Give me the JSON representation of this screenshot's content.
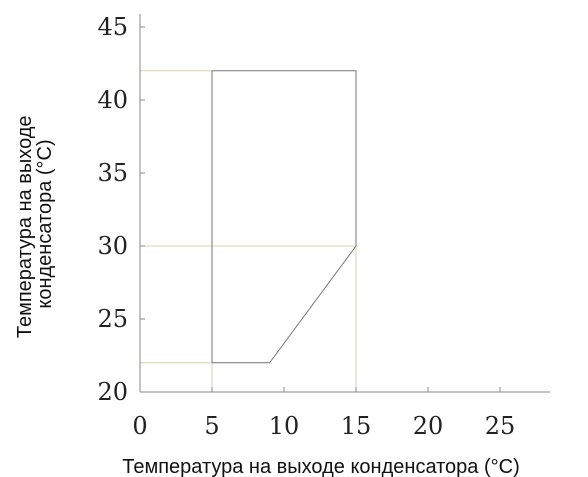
{
  "chart_data": {
    "type": "line",
    "xlabel": "Температура на выходе конденсатора (°C)",
    "ylabel_line1": "Температура на выходе",
    "ylabel_line2": "конденсатора (°C)",
    "xlim": [
      0,
      27.5
    ],
    "ylim": [
      20,
      46
    ],
    "xticks": [
      "0",
      "5",
      "10",
      "15",
      "20",
      "25"
    ],
    "yticks": [
      "20",
      "25",
      "30",
      "35",
      "40",
      "45"
    ],
    "grid": false,
    "series": [
      {
        "points": [
          [
            5,
            22
          ],
          [
            9,
            22
          ],
          [
            15,
            30
          ],
          [
            15,
            42
          ],
          [
            5,
            42
          ],
          [
            5,
            22
          ]
        ]
      }
    ],
    "reference_lines": [
      {
        "from": [
          0,
          42
        ],
        "to": [
          5,
          42
        ]
      },
      {
        "from": [
          0,
          30
        ],
        "to": [
          15,
          30
        ]
      },
      {
        "from": [
          0,
          22
        ],
        "to": [
          5,
          22
        ]
      },
      {
        "from": [
          5,
          20
        ],
        "to": [
          5,
          22
        ]
      },
      {
        "from": [
          15,
          20
        ],
        "to": [
          15,
          30
        ]
      }
    ],
    "colors": {
      "outline": "#777777",
      "reference": "#d9d6a6",
      "axis": "#888888"
    }
  }
}
